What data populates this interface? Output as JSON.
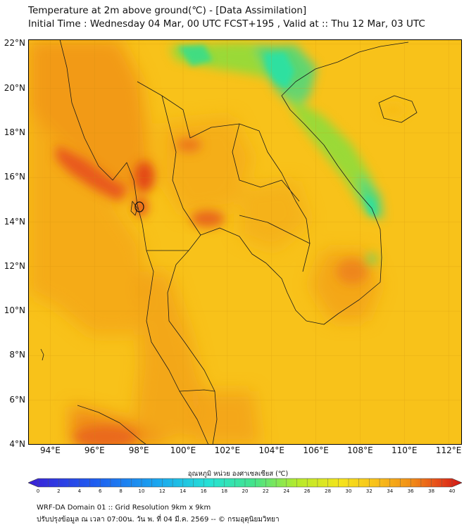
{
  "header": {
    "title_line1": "Temperature at 2m above ground(℃) - [Data Assimilation]",
    "title_line2": "Initial Time : Wednesday 04 Mar, 00 UTC FCST+195 , Valid at :: Thu 12 Mar, 03 UTC"
  },
  "map": {
    "lat_labels": [
      "22°N",
      "20°N",
      "18°N",
      "16°N",
      "14°N",
      "12°N",
      "10°N",
      "8°N",
      "6°N",
      "4°N"
    ],
    "lon_labels": [
      "94°E",
      "96°E",
      "98°E",
      "100°E",
      "102°E",
      "104°E",
      "106°E",
      "108°E",
      "110°E",
      "112°E"
    ],
    "extent": {
      "lon_min": 93,
      "lon_max": 112.6,
      "lat_min": 4,
      "lat_max": 22.2
    }
  },
  "colorbar": {
    "title": "อุณหภูมิ หน่วย องศาเซลเซียส (℃)",
    "ticks": [
      "0",
      "2",
      "4",
      "6",
      "8",
      "10",
      "12",
      "14",
      "16",
      "18",
      "20",
      "22",
      "24",
      "26",
      "28",
      "30",
      "32",
      "34",
      "36",
      "38",
      "40"
    ],
    "min": 0,
    "max": 40
  },
  "footer": {
    "line1": "WRF-DA Domain 01 :: Grid Resolution 9km x 9km",
    "line2": "ปรับปรุงข้อมูล ณ เวลา 07:00น. วัน พ. ที่ 04 มี.ค. 2569 -- © กรมอุตุนิยมวิทยา"
  },
  "colors": {
    "base_field": "#f8c21a",
    "warm_field": "#f29a17",
    "hot_field": "#e8591a",
    "cool_field": "#8fdc3a",
    "cold_field": "#2fe0a0",
    "border_line": "#1a1a1a"
  }
}
